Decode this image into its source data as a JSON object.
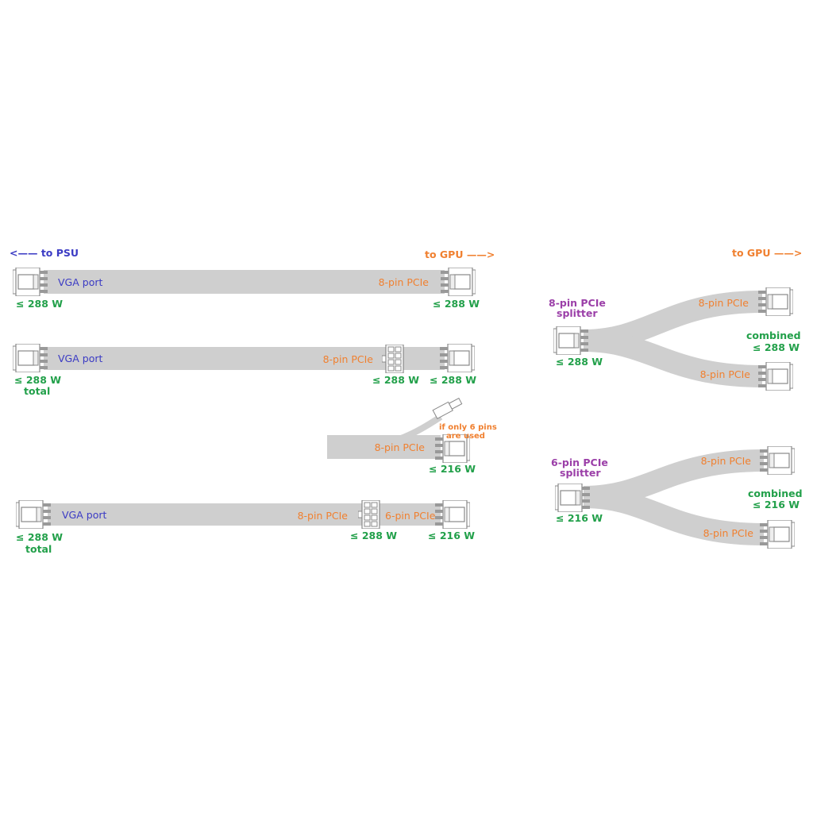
{
  "colors": {
    "psu": "#3b3bc4",
    "gpu": "#f08030",
    "watt": "#22a04a",
    "splitter": "#9b3fa8",
    "cable": "#cfcfcf"
  },
  "headers": {
    "to_psu": "<—— to PSU",
    "to_gpu_left": "to GPU ——>",
    "to_gpu_right": "to GPU ——>"
  },
  "rows": [
    {
      "left_port": "VGA port",
      "left_watt": "≤ 288 W",
      "right_port": "8-pin PCIe",
      "right_watt": "≤ 288 W"
    },
    {
      "left_port": "VGA port",
      "left_watt": "≤ 288 W",
      "left_note": "total",
      "mid_port": "8-pin PCIe",
      "mid_watt": "≤ 288 W",
      "right_watt": "≤ 288 W"
    },
    {
      "port": "8-pin PCIe",
      "note_line1": "if only 6 pins",
      "note_line2": "are used",
      "watt": "≤ 216 W"
    },
    {
      "left_port": "VGA port",
      "left_watt": "≤ 288 W",
      "left_note": "total",
      "mid_port": "8-pin PCIe",
      "mid_watt": "≤ 288 W",
      "right_port": "6-pin PCIe",
      "right_watt": "≤ 216 W"
    }
  ],
  "splitters": [
    {
      "name_line1": "8-pin PCIe",
      "name_line2": "splitter",
      "input_watt": "≤ 288 W",
      "out_upper": "8-pin PCIe",
      "out_lower": "8-pin PCIe",
      "combined": "combined",
      "combined_watt": "≤ 288 W"
    },
    {
      "name_line1": "6-pin PCIe",
      "name_line2": "splitter",
      "input_watt": "≤ 216 W",
      "out_upper": "8-pin PCIe",
      "out_lower": "8-pin PCIe",
      "combined": "combined",
      "combined_watt": "≤ 216 W"
    }
  ]
}
